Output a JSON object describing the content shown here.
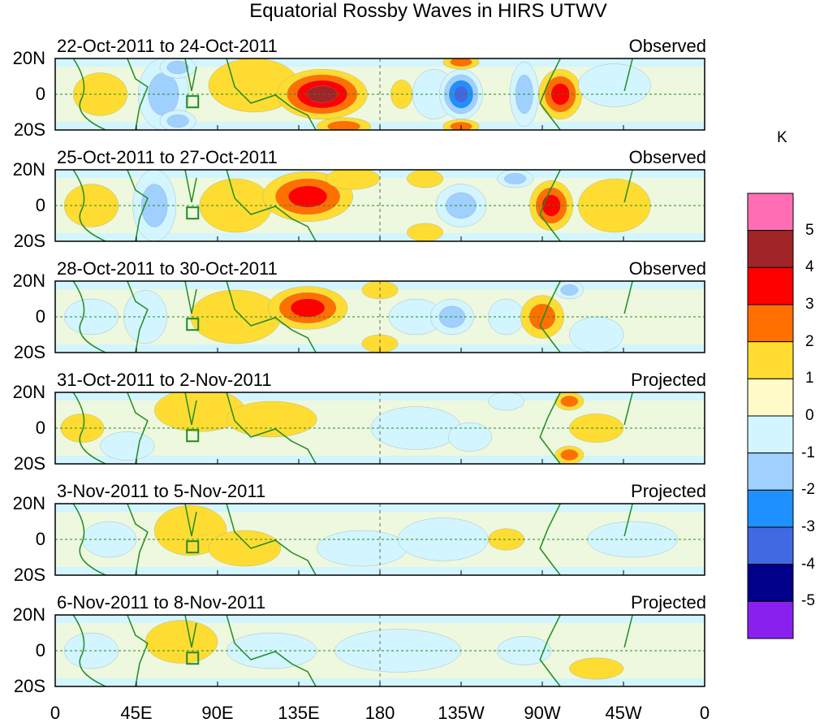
{
  "title": "Equatorial Rossby Waves in HIRS UTWV",
  "panels": [
    {
      "dates": "22-Oct-2011 to 24-Oct-2011",
      "status": "Observed"
    },
    {
      "dates": "25-Oct-2011 to 27-Oct-2011",
      "status": "Observed"
    },
    {
      "dates": "28-Oct-2011 to 30-Oct-2011",
      "status": "Observed"
    },
    {
      "dates": "31-Oct-2011 to 2-Nov-2011",
      "status": "Projected"
    },
    {
      "dates": "3-Nov-2011 to 5-Nov-2011",
      "status": "Projected"
    },
    {
      "dates": "6-Nov-2011 to 8-Nov-2011",
      "status": "Projected"
    }
  ],
  "lat_labels": [
    "20N",
    "0",
    "20S"
  ],
  "lon_labels": [
    "0",
    "45E",
    "90E",
    "135E",
    "180",
    "135W",
    "90W",
    "45W",
    "0"
  ],
  "colorbar": {
    "unit": "K",
    "labels": [
      "5",
      "4",
      "3",
      "2",
      "1",
      "0",
      "-1",
      "-2",
      "-3",
      "-4",
      "-5"
    ],
    "colors": [
      "#ff6eb4",
      "#a02428",
      "#ff0000",
      "#ff7000",
      "#ffdc32",
      "#fffac8",
      "#d2f5ff",
      "#a0d0ff",
      "#1e90ff",
      "#4169e1",
      "#00008b",
      "#8a20ee"
    ]
  }
}
